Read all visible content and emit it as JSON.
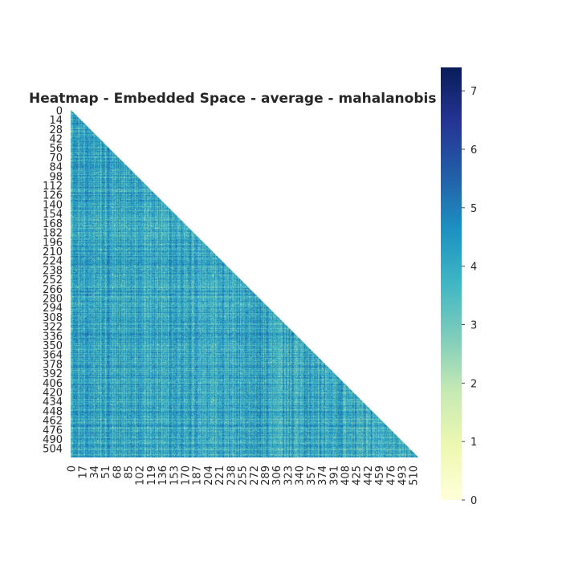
{
  "chart_data": {
    "type": "heatmap",
    "title": "Heatmap - Embedded Space - average - mahalanobis",
    "xlabel": "",
    "ylabel": "",
    "n": 518,
    "mask": "upper-triangle",
    "y_tick_labels": [
      "0",
      "14",
      "28",
      "42",
      "56",
      "70",
      "84",
      "98",
      "112",
      "126",
      "140",
      "154",
      "168",
      "182",
      "196",
      "210",
      "224",
      "238",
      "252",
      "266",
      "280",
      "294",
      "308",
      "322",
      "336",
      "350",
      "364",
      "378",
      "392",
      "406",
      "420",
      "434",
      "448",
      "462",
      "476",
      "490",
      "504"
    ],
    "x_tick_labels": [
      "0",
      "17",
      "34",
      "51",
      "68",
      "85",
      "102",
      "119",
      "136",
      "153",
      "170",
      "187",
      "204",
      "221",
      "238",
      "255",
      "272",
      "289",
      "306",
      "323",
      "340",
      "357",
      "374",
      "391",
      "408",
      "425",
      "442",
      "459",
      "476",
      "493",
      "510"
    ],
    "colorbar": {
      "range": [
        0,
        7.4
      ],
      "ticks": [
        "0",
        "1",
        "2",
        "3",
        "4",
        "5",
        "6",
        "7"
      ],
      "colormap": "YlGnBu",
      "colors": [
        "#ffffd9",
        "#edf8b1",
        "#c7e9b4",
        "#7fcdbb",
        "#41b6c4",
        "#1d91c0",
        "#225ea8",
        "#253494",
        "#081d58"
      ]
    },
    "cell_value_typical_range": [
      2.5,
      5.5
    ]
  }
}
